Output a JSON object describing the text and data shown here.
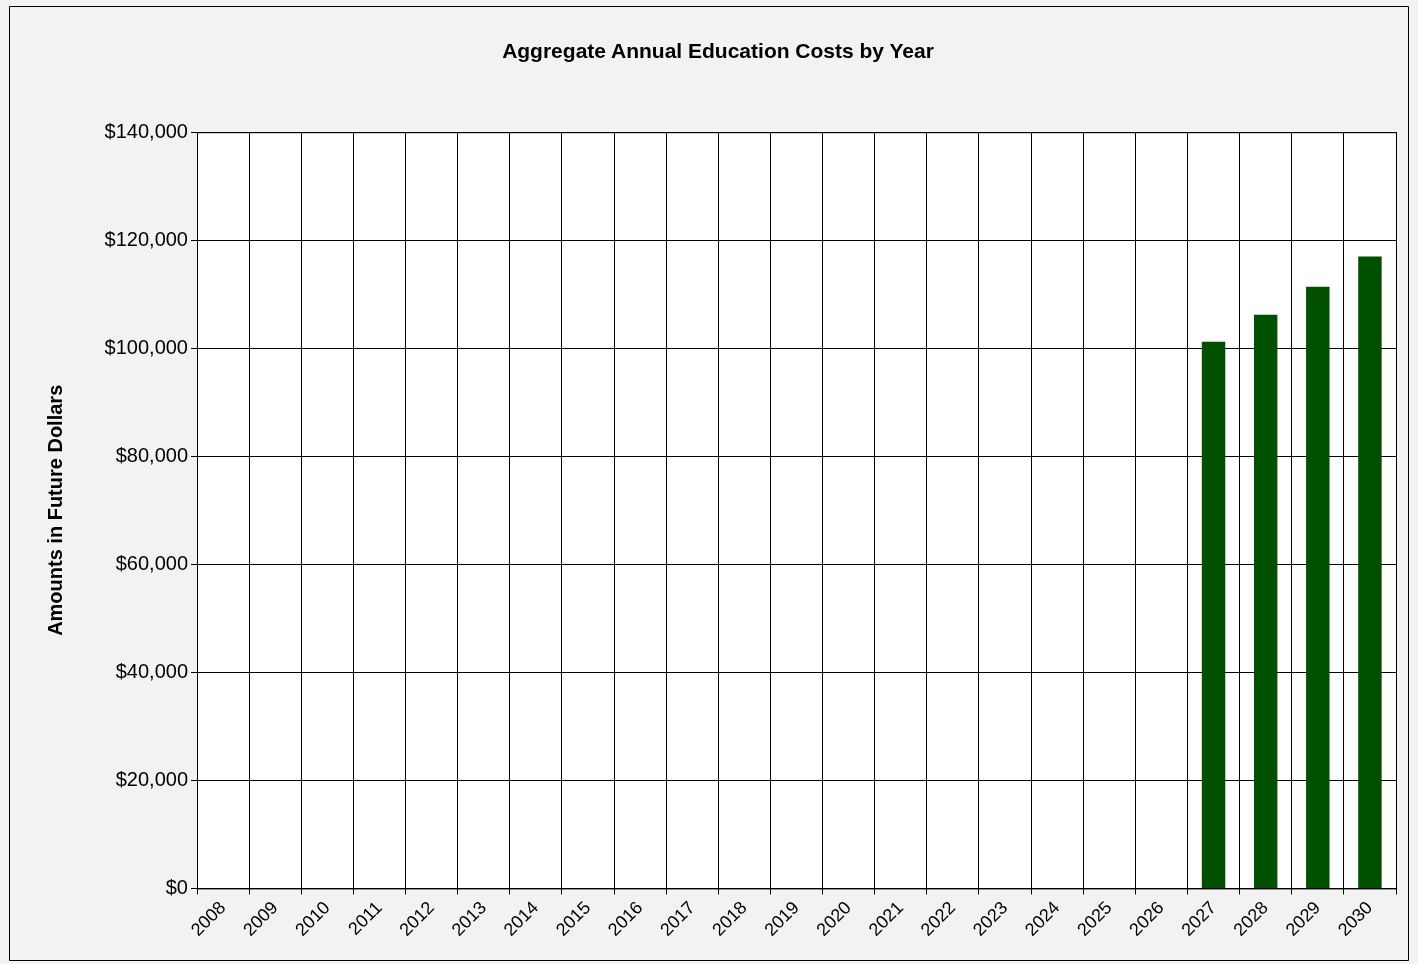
{
  "chart_data": {
    "type": "bar",
    "title": "Aggregate Annual Education Costs by Year",
    "ylabel": "Amounts in Future Dollars",
    "categories": [
      "2008",
      "2009",
      "2010",
      "2011",
      "2012",
      "2013",
      "2014",
      "2015",
      "2016",
      "2017",
      "2018",
      "2019",
      "2020",
      "2021",
      "2022",
      "2023",
      "2024",
      "2025",
      "2026",
      "2027",
      "2028",
      "2029",
      "2030"
    ],
    "values": [
      null,
      null,
      null,
      null,
      null,
      null,
      null,
      null,
      null,
      null,
      null,
      null,
      null,
      null,
      null,
      null,
      null,
      null,
      null,
      101200,
      106200,
      111400,
      117000
    ],
    "color": "#005000",
    "ylim": [
      0,
      140000
    ],
    "yticks": [
      {
        "value": 0,
        "label": "$0"
      },
      {
        "value": 20000,
        "label": "$20,000"
      },
      {
        "value": 40000,
        "label": "$40,000"
      },
      {
        "value": 60000,
        "label": "$60,000"
      },
      {
        "value": 80000,
        "label": "$80,000"
      },
      {
        "value": 100000,
        "label": "$100,000"
      },
      {
        "value": 120000,
        "label": "$120,000"
      },
      {
        "value": 140000,
        "label": "$140,000"
      }
    ],
    "grid": true
  }
}
